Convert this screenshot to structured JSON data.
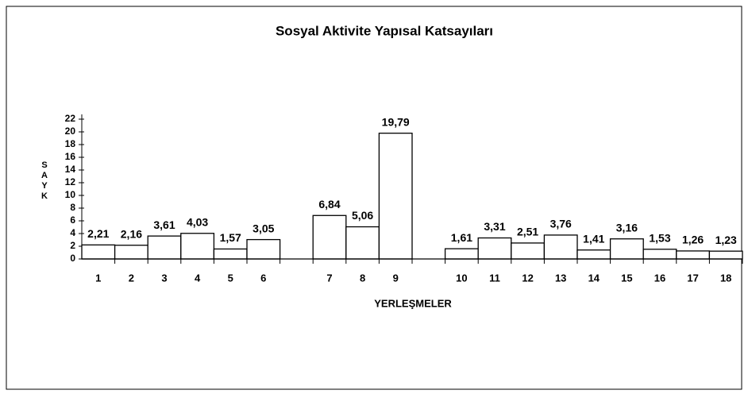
{
  "chart_data": {
    "type": "bar",
    "title": "Sosyal Aktivite Yapısal Katsayıları",
    "x_label": "YERLEŞMELER",
    "y_label": "SAYK",
    "categories": [
      "1",
      "2",
      "3",
      "4",
      "5",
      "6",
      null,
      "7",
      "8",
      "9",
      null,
      "10",
      "11",
      "12",
      "13",
      "14",
      "15",
      "16",
      "17",
      "18"
    ],
    "values": [
      2.21,
      2.16,
      3.61,
      4.03,
      1.57,
      3.05,
      null,
      6.84,
      5.06,
      19.79,
      null,
      1.61,
      3.31,
      2.51,
      3.76,
      1.41,
      3.16,
      1.53,
      1.26,
      1.23
    ],
    "value_labels": [
      "2,21",
      "2,16",
      "3,61",
      "4,03",
      "1,57",
      "3,05",
      null,
      "6,84",
      "5,06",
      "19,79",
      null,
      "1,61",
      "3,31",
      "2,51",
      "3,76",
      "1,41",
      "3,16",
      "1,53",
      "1,26",
      "1,23"
    ],
    "color": "#ffffff",
    "ylim": [
      0,
      22
    ],
    "yticks": [
      0,
      2,
      4,
      6,
      8,
      10,
      12,
      14,
      16,
      18,
      20,
      22
    ]
  }
}
